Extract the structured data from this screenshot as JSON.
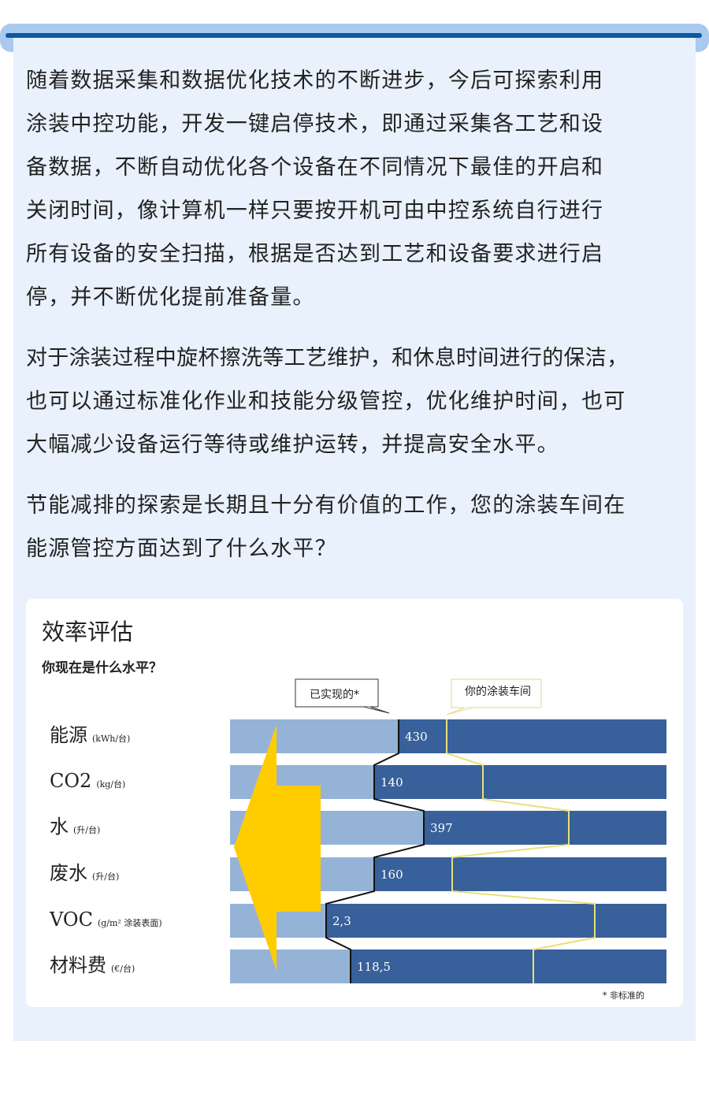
{
  "paragraphs": [
    {
      "lines": [
        "随着数据采集和数据优化技术的不断进步，今后可探索利用",
        "涂装中控功能，开发一键启停技术，即通过采集各工艺和设",
        "备数据，不断自动优化各个设备在不同情况下最佳的开启和",
        "关闭时间，像计算机一样只要按开机可由中控系统自行进行",
        "所有设备的安全扫描，根据是否达到工艺和设备要求进行启",
        "停，并不断优化提前准备量。"
      ]
    },
    {
      "lines": [
        "对于涂装过程中旋杯擦洗等工艺维护，和休息时间进行的保洁，",
        "也可以通过标准化作业和技能分级管控，优化维护时间，也可",
        "大幅减少设备运行等待或维护运转，并提高安全水平。"
      ]
    },
    {
      "lines": [
        "节能减排的探索是长期且十分有价值的工作，您的涂装车间在",
        "能源管控方面达到了什么水平？"
      ]
    }
  ],
  "figure": {
    "title": "效率评估",
    "subtitle": "你现在是什么水平？",
    "callout_achieved": "已实现的*",
    "callout_yours": "你的涂装车间",
    "footnote": "* 非标准的",
    "rows": [
      {
        "name": "能源",
        "unit": "(kWh/台)",
        "value": "430"
      },
      {
        "name": "CO2",
        "unit": "(kg/台)",
        "value": "140"
      },
      {
        "name": "水",
        "unit": "(升/台)",
        "value": "397"
      },
      {
        "name": "废水",
        "unit": "(升/台)",
        "value": "160"
      },
      {
        "name": "VOC",
        "unit": "(g/m² 涂装表面)",
        "value": "2,3"
      },
      {
        "name": "材料费",
        "unit": "(€/台)",
        "value": "118,5"
      }
    ],
    "colors": {
      "light_bar": "#95b3d7",
      "dark_bar": "#38609a",
      "arrow": "#ffcc00",
      "your_line": "#e8e07a"
    }
  }
}
